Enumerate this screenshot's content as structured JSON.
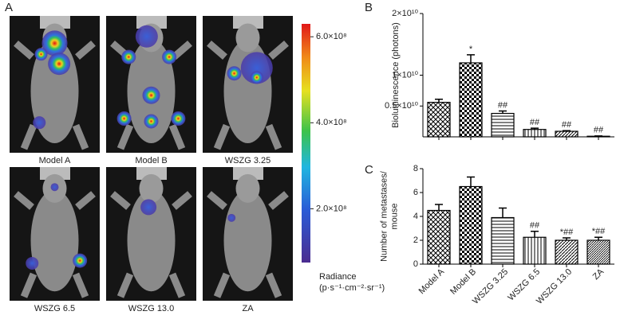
{
  "panel_a": {
    "label": "A",
    "images": [
      "Model A",
      "Model B",
      "WSZG 3.25",
      "WSZG 6.5",
      "WSZG 13.0",
      "ZA"
    ],
    "colorbar": {
      "lim": [
        75000000,
        630000000
      ],
      "ticks": [
        {
          "value": 200000000,
          "label": "2.0×10⁸"
        },
        {
          "value": 400000000,
          "label": "4.0×10⁸"
        },
        {
          "value": 600000000,
          "label": "6.0×10⁸"
        }
      ],
      "label": "Radiance",
      "unit": "(p·s⁻¹·cm⁻²·sr⁻¹)"
    }
  },
  "chart_data": [
    {
      "type": "bar",
      "panel": "B",
      "ylabel": [
        "Bioluminescence (photons)"
      ],
      "color": "#000000",
      "values": [
        5600000000,
        12000000000,
        3800000000,
        1200000000,
        900000000,
        100000000
      ],
      "errors": [
        500000000,
        1300000000,
        400000000,
        200000000,
        100000000,
        50000000
      ],
      "annotations": [
        null,
        "*",
        "##",
        "##",
        "##",
        "##"
      ],
      "ylim": [
        0,
        20000000000
      ],
      "yticks": [
        {
          "value": 5000000000,
          "label": "0.5×10¹⁰"
        },
        {
          "value": 10000000000,
          "label": "1×10¹⁰"
        },
        {
          "value": 20000000000,
          "label": "2×10¹⁰"
        }
      ]
    },
    {
      "type": "bar",
      "panel": "C",
      "ylabel": [
        "Number of metastases/",
        "mouse"
      ],
      "color": "#000000",
      "categories": [
        "Model A",
        "Model B",
        "WSZG 3.25",
        "WSZG 6.5",
        "WSZG 13.0",
        "ZA"
      ],
      "values": [
        4.5,
        6.5,
        3.9,
        2.25,
        2.0,
        2.0
      ],
      "errors": [
        0.5,
        0.8,
        0.8,
        0.5,
        0.2,
        0.25
      ],
      "annotations": [
        null,
        null,
        null,
        "##",
        "*##",
        "*##"
      ],
      "ylim": [
        0,
        8
      ],
      "yticks": [
        0,
        2,
        4,
        6,
        8
      ]
    }
  ]
}
